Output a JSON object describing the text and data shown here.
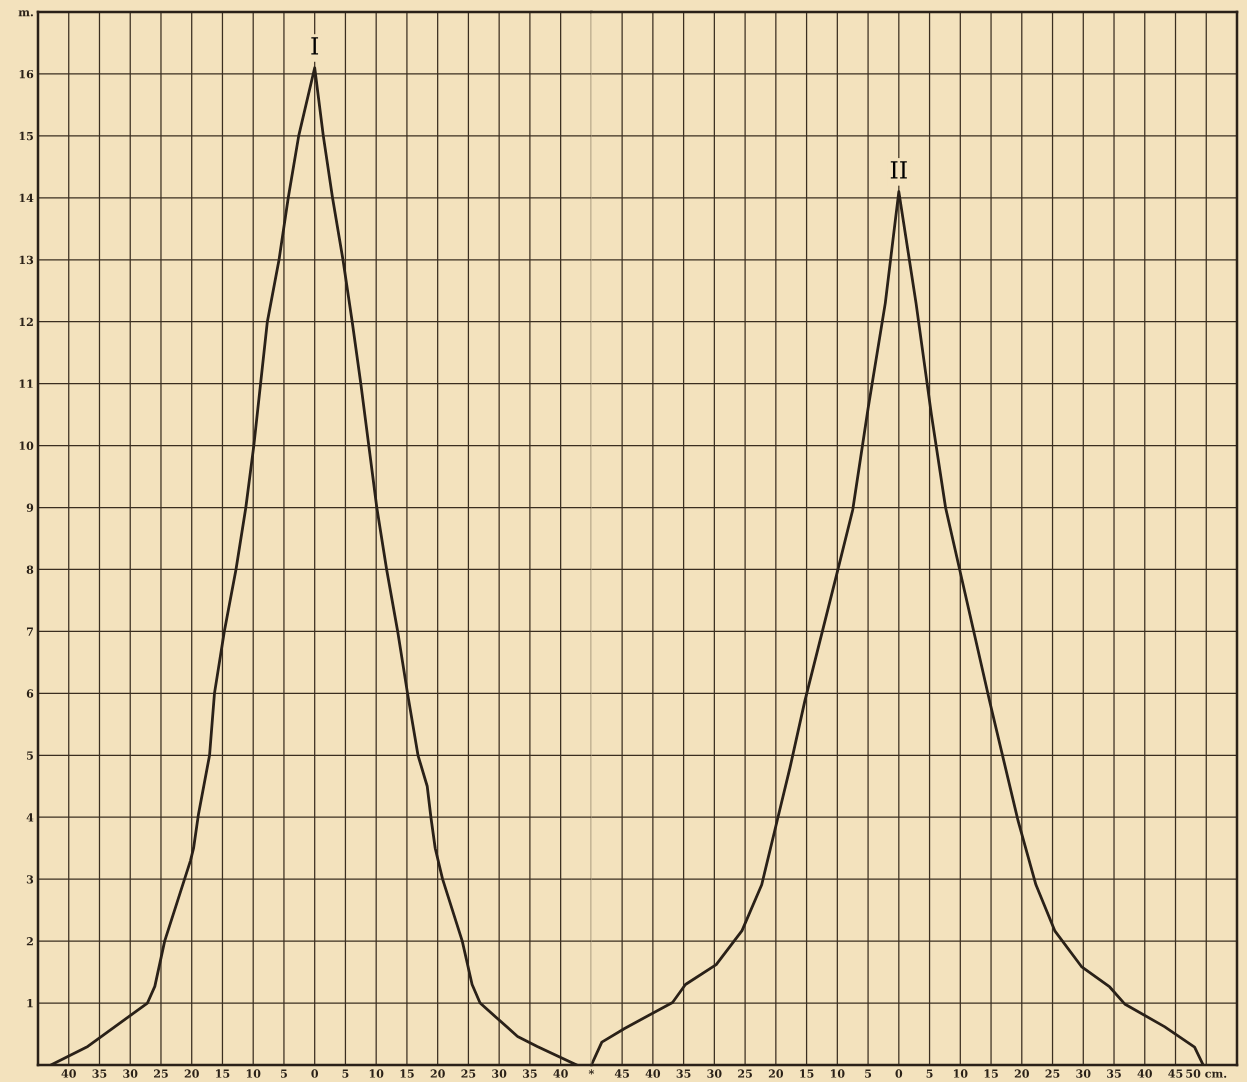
{
  "chart_data": [
    {
      "type": "line",
      "xlim": [
        -45,
        45
      ],
      "ylim": [
        0,
        17
      ],
      "xticks": [
        {
          "value": -40,
          "label": "40"
        },
        {
          "value": -35,
          "label": "35"
        },
        {
          "value": -30,
          "label": "30"
        },
        {
          "value": -25,
          "label": "25"
        },
        {
          "value": -20,
          "label": "20"
        },
        {
          "value": -15,
          "label": "15"
        },
        {
          "value": -10,
          "label": "10"
        },
        {
          "value": -5,
          "label": "5"
        },
        0,
        5,
        10,
        15,
        20,
        25,
        30,
        35,
        40,
        {
          "value": 45,
          "label": "*"
        }
      ],
      "yticks": [
        1,
        2,
        3,
        4,
        5,
        6,
        7,
        8,
        9,
        10,
        11,
        12,
        13,
        14,
        15,
        16,
        {
          "value": 17,
          "label": "m."
        }
      ],
      "grid": true,
      "marker": "none",
      "line_style": "solid",
      "series": [
        {
          "color": "#2a2118",
          "x": [
            -42.9,
            -36.9,
            -27.2,
            -26,
            -24.4,
            -20.2,
            -19.7,
            -18.9,
            -17.1,
            -16.3,
            -14.7,
            -12.8,
            -11.2,
            -9.9,
            -8.8,
            -7.7,
            -5.8,
            -4.3,
            -2.6,
            0,
            1.4,
            2.9,
            4.6,
            6.1,
            7.5,
            8.8,
            10.1,
            11.7,
            13.5,
            15.1,
            16.8,
            18.3,
            18.9,
            19.6,
            20.8,
            24.0,
            25.6,
            26.9,
            33.0,
            36.2,
            42.6
          ],
          "values": [
            0,
            0.3,
            1.0,
            1.27,
            2.0,
            3.3,
            3.5,
            4.05,
            5,
            6,
            7,
            8,
            9,
            10,
            11,
            12,
            13,
            14,
            15,
            16.1,
            15,
            14,
            13,
            12,
            11,
            10,
            9,
            8,
            7,
            6,
            5,
            4.5,
            4,
            3.5,
            3,
            2,
            1.3,
            1,
            0.46,
            0.3,
            0
          ]
        }
      ],
      "annotations": [
        "I"
      ]
    },
    {
      "type": "line",
      "xlim": [
        -50,
        55
      ],
      "ylim": [
        0,
        17
      ],
      "tick_labels": "x",
      "xticks": [
        {
          "value": -45,
          "label": "45"
        },
        {
          "value": -40,
          "label": "40"
        },
        {
          "value": -35,
          "label": "35"
        },
        {
          "value": -30,
          "label": "30"
        },
        {
          "value": -25,
          "label": "25"
        },
        {
          "value": -20,
          "label": "20"
        },
        {
          "value": -15,
          "label": "15"
        },
        {
          "value": -10,
          "label": "10"
        },
        {
          "value": -5,
          "label": "5"
        },
        0,
        5,
        10,
        15,
        20,
        25,
        30,
        35,
        40,
        45,
        {
          "value": 50,
          "label": "50 cm."
        }
      ],
      "yticks": [
        1,
        2,
        3,
        4,
        5,
        6,
        7,
        8,
        9,
        10,
        11,
        12,
        13,
        14,
        15,
        16,
        17
      ],
      "grid": true,
      "marker": "none",
      "line_style": "solid",
      "series": [
        {
          "color": "#2a2118",
          "x": [
            -50,
            -48.3,
            -44.6,
            -36.8,
            -34.7,
            -29.7,
            -25.5,
            -22.3,
            -19.8,
            -17.7,
            -15.3,
            -10,
            -7.5,
            -5,
            -2.2,
            0,
            2.8,
            5.3,
            7.6,
            9.8,
            14.8,
            19.4,
            22.3,
            25.4,
            29.7,
            34.3,
            36.8,
            43.2,
            48.1,
            49.5
          ],
          "values": [
            0,
            0.37,
            0.59,
            1.01,
            1.3,
            1.62,
            2.17,
            2.91,
            3.94,
            4.8,
            5.87,
            7.96,
            8.96,
            10.6,
            12.3,
            14.1,
            12.3,
            10.5,
            9.0,
            8.04,
            5.86,
            3.94,
            2.91,
            2.16,
            1.59,
            1.26,
            0.98,
            0.62,
            0.29,
            0
          ]
        }
      ],
      "annotations": [
        "II"
      ]
    }
  ]
}
